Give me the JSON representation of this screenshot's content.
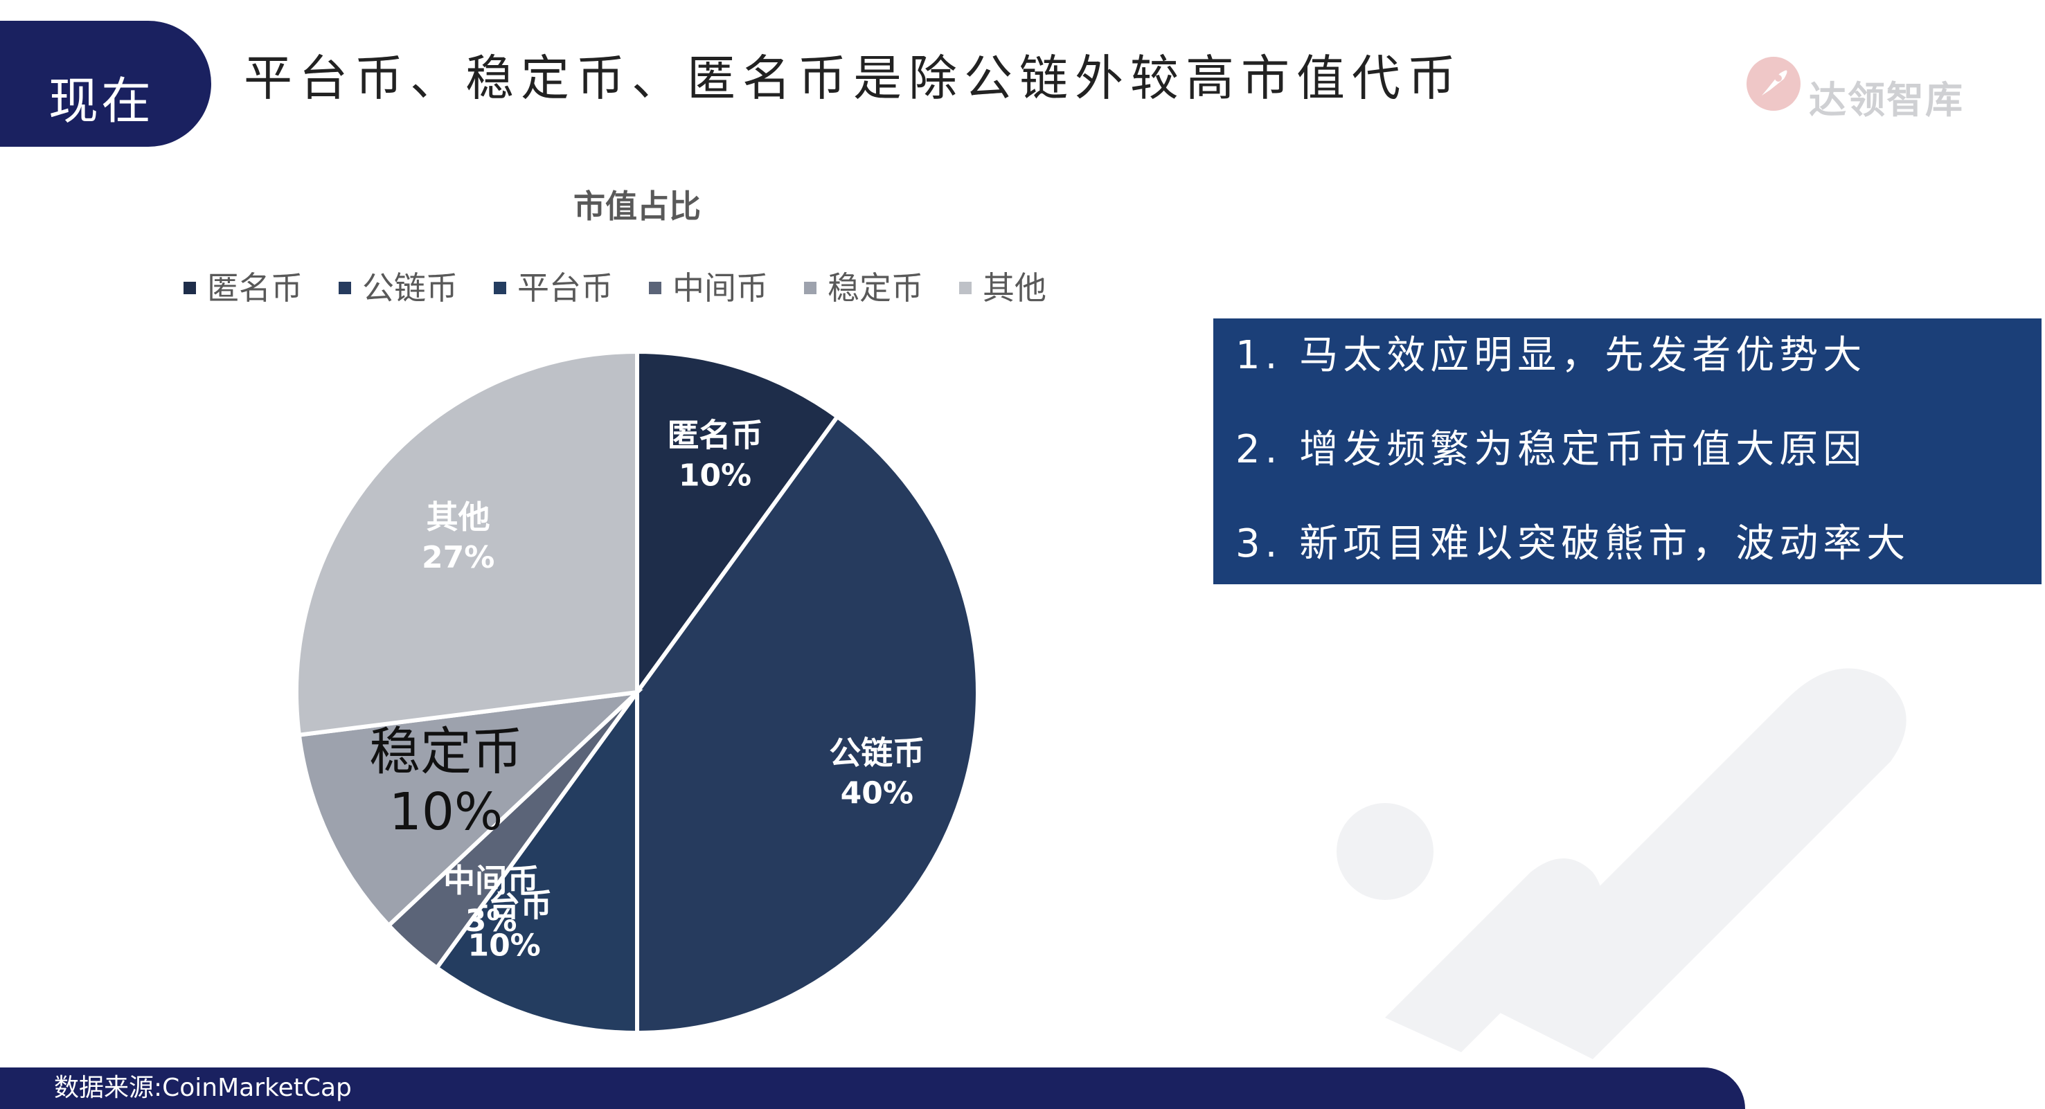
{
  "header": {
    "tab_label": "现在",
    "title": "平台币、稳定币、匿名币是除公链外较高市值代币",
    "logo_text": "达领智库"
  },
  "chart_data": {
    "type": "pie",
    "title": "市值占比",
    "legend_position": "top",
    "slices": [
      {
        "name": "匿名币",
        "value": 10,
        "label": "10%",
        "color": "#1e2d4a"
      },
      {
        "name": "公链币",
        "value": 40,
        "label": "40%",
        "color": "#263b5e"
      },
      {
        "name": "平台币",
        "value": 10,
        "label": "10%",
        "color": "#243d60"
      },
      {
        "name": "中间币",
        "value": 3,
        "label": "3%",
        "color": "#5b6478"
      },
      {
        "name": "稳定币",
        "value": 10,
        "label": "10%",
        "color": "#9da2ad"
      },
      {
        "name": "其他",
        "value": 27,
        "label": "27%",
        "color": "#bec1c7"
      }
    ]
  },
  "notes": [
    "1. 马太效应明显，先发者优势大",
    "2. 增发频繁为稳定币市值大原因",
    "3. 新项目难以突破熊市，波动率大"
  ],
  "footer": {
    "source": "数据来源:CoinMarketCap"
  }
}
